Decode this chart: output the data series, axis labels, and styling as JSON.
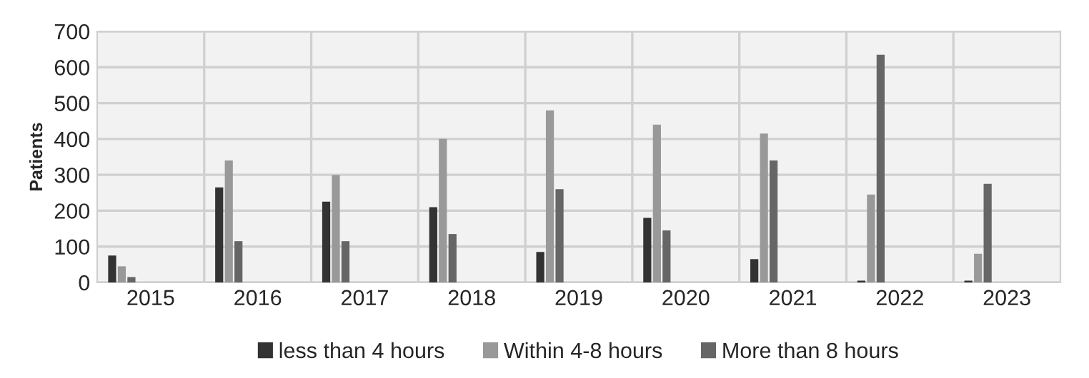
{
  "chart_data": {
    "type": "bar",
    "ylabel": "Patients",
    "categories": [
      "2015",
      "2016",
      "2017",
      "2018",
      "2019",
      "2020",
      "2021",
      "2022",
      "2023"
    ],
    "series": [
      {
        "name": "less than 4 hours",
        "color": "#333333",
        "values": [
          75,
          265,
          225,
          210,
          85,
          180,
          65,
          5,
          5
        ]
      },
      {
        "name": "Within 4-8 hours",
        "color": "#999999",
        "values": [
          45,
          340,
          300,
          400,
          480,
          440,
          415,
          245,
          80
        ]
      },
      {
        "name": "More than 8 hours",
        "color": "#666666",
        "values": [
          15,
          115,
          115,
          135,
          260,
          145,
          340,
          635,
          275
        ]
      }
    ],
    "ylim": [
      0,
      700
    ],
    "yticks": [
      0,
      100,
      200,
      300,
      400,
      500,
      600,
      700
    ],
    "grid": true,
    "legend": "bottom"
  }
}
